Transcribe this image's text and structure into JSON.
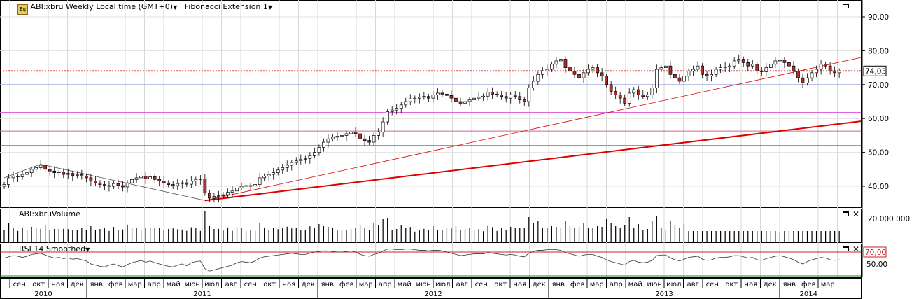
{
  "header": {
    "symbol_label": "ABI:xbru Weekly Local time (GMT+0)",
    "study_label": "Fibonacci Extension 1",
    "volume_label": "ABI:xbruVolume",
    "rsi_label": "RSI 14 Smoothed"
  },
  "price_axis": {
    "ticks": [
      "90,00",
      "80,00",
      "70,00",
      "60,00",
      "50,00",
      "40,00"
    ],
    "tick_values": [
      90,
      80,
      70,
      60,
      50,
      40
    ],
    "last_price_label": "74,03",
    "last_price": 74.03
  },
  "volume_axis": {
    "tick": "20 000 000",
    "tick_value": 20000000
  },
  "rsi_axis": {
    "ticks": [
      "70,00",
      "50,00"
    ],
    "tick_values": [
      70,
      50
    ],
    "overbought": 70
  },
  "time_axis": {
    "months": [
      "сен",
      "окт",
      "ноя",
      "дек",
      "янв",
      "фев",
      "мар",
      "апр",
      "май",
      "июн",
      "июл",
      "авг",
      "сен",
      "окт",
      "ноя",
      "дек",
      "янв",
      "фев",
      "мар",
      "апр",
      "май",
      "июн",
      "июл",
      "авг",
      "сен",
      "окт",
      "ноя",
      "дек",
      "янв",
      "фев",
      "мар",
      "апр",
      "май",
      "июн",
      "июл",
      "авг",
      "сен",
      "окт",
      "ноя",
      "дек",
      "янв",
      "фев",
      "мар"
    ],
    "years": [
      "2010",
      "2011",
      "2012",
      "2013",
      "2014"
    ]
  },
  "colors": {
    "up": "#ffffff",
    "down": "#b03030",
    "last_price_line": "#c00000",
    "fib_blue": "#8899dd",
    "fib_magenta": "#dd66dd",
    "fib_pink": "#cc6699",
    "fib_green": "#228822",
    "trend": "#dd0000",
    "rsi_upper": "#cc2222"
  },
  "chart_data": {
    "type": "candlestick",
    "title": "",
    "xlabel": "",
    "ylabel": "",
    "ylim": [
      33,
      95
    ],
    "series": [
      {
        "name": "ABI:xbru",
        "close": [
          40.5,
          42.5,
          43,
          42.8,
          43.5,
          44,
          45,
          45.5,
          46.2,
          45,
          44.5,
          44,
          44.2,
          43.5,
          43.8,
          43.2,
          43.4,
          43,
          42.5,
          41.5,
          41,
          40.5,
          40.2,
          40,
          40.8,
          40.2,
          39.8,
          41,
          42,
          42.5,
          43,
          42.2,
          42.8,
          42,
          41.5,
          41,
          40.5,
          40.2,
          40.8,
          41,
          40.6,
          41.5,
          42,
          42.2,
          38,
          36.5,
          37,
          37.2,
          37.5,
          38.2,
          38.6,
          39.5,
          40,
          40.2,
          40.1,
          40.5,
          42.5,
          43,
          43.5,
          44,
          44.8,
          45.5,
          46.2,
          47,
          47.5,
          48,
          48.2,
          49,
          50,
          51.5,
          53,
          54,
          54.5,
          54.8,
          55,
          55.5,
          56,
          55.5,
          54,
          53.5,
          53,
          55,
          56,
          59,
          62,
          62.5,
          63,
          64,
          65,
          65.8,
          66,
          66.3,
          66.5,
          66,
          67,
          67.5,
          67.2,
          66.8,
          66,
          65,
          64.5,
          65,
          65.5,
          66,
          66.3,
          66.6,
          67.8,
          67.2,
          67,
          66.5,
          66,
          67,
          66.5,
          65.5,
          65,
          69,
          71,
          73,
          74,
          74.5,
          76,
          77,
          77.5,
          75,
          74,
          73,
          72,
          73.5,
          74.5,
          75,
          73.5,
          72.5,
          70,
          68,
          67,
          66,
          64.5,
          67.5,
          68.5,
          67,
          66.5,
          67,
          69,
          74.5,
          75,
          75.5,
          73,
          72,
          71,
          72.5,
          74,
          74.5,
          75.5,
          73,
          72.5,
          73,
          74.5,
          75,
          75.2,
          75.5,
          77,
          77.5,
          76.5,
          75.5,
          76,
          74,
          73.8,
          75,
          76,
          77,
          77.2,
          76.5,
          75.5,
          74,
          72,
          70.5,
          72,
          73.5,
          74.5,
          76,
          75.5,
          74,
          73.5,
          74
        ]
      }
    ],
    "last_price": 74.03,
    "volume_tick": 20000000,
    "rsi": {
      "name": "RSI 14 Smoothed",
      "upper": 70,
      "lower_tick": 50,
      "values": [
        60,
        62,
        64,
        63,
        61,
        63,
        66,
        67,
        68,
        65,
        62,
        60,
        61,
        59,
        60,
        58,
        59,
        57,
        55,
        50,
        48,
        46,
        45,
        48,
        50,
        47,
        45,
        49,
        52,
        54,
        56,
        53,
        55,
        52,
        50,
        48,
        46,
        45,
        48,
        50,
        47,
        52,
        54,
        55,
        42,
        38,
        40,
        42,
        44,
        46,
        48,
        52,
        54,
        53,
        52,
        55,
        60,
        62,
        63,
        64,
        65,
        66,
        67,
        68,
        67,
        66,
        66,
        68,
        70,
        71,
        72,
        72,
        71,
        70,
        70,
        71,
        72,
        70,
        66,
        64,
        63,
        66,
        68,
        72,
        75,
        75,
        74,
        74,
        75,
        75,
        74,
        73,
        73,
        72,
        73,
        73,
        72,
        70,
        68,
        66,
        64,
        65,
        66,
        67,
        67,
        67,
        69,
        68,
        67,
        66,
        65,
        66,
        65,
        63,
        62,
        68,
        71,
        73,
        73,
        74,
        74,
        74,
        73,
        69,
        67,
        65,
        63,
        65,
        66,
        66,
        63,
        61,
        57,
        54,
        52,
        50,
        48,
        54,
        56,
        53,
        52,
        53,
        56,
        64,
        65,
        65,
        60,
        57,
        55,
        58,
        61,
        62,
        63,
        58,
        56,
        57,
        60,
        61,
        61,
        62,
        64,
        64,
        62,
        60,
        61,
        57,
        56,
        59,
        61,
        63,
        64,
        62,
        60,
        57,
        53,
        50,
        54,
        57,
        59,
        61,
        60,
        57,
        56,
        57
      ]
    }
  }
}
